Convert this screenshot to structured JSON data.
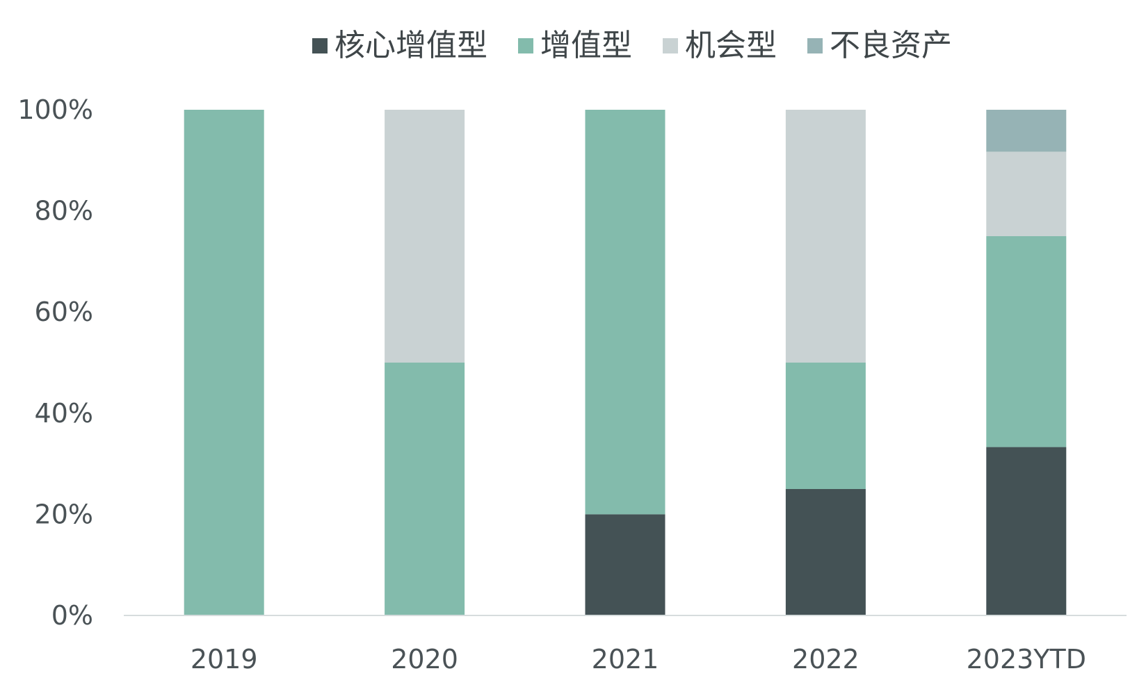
{
  "chart_data": {
    "type": "bar",
    "stacked": true,
    "title": "",
    "xlabel": "",
    "ylabel": "",
    "categories": [
      "2019",
      "2020",
      "2021",
      "2022",
      "2023YTD"
    ],
    "ylim": [
      0,
      100
    ],
    "yticks": [
      "0%",
      "20%",
      "40%",
      "60%",
      "80%",
      "100%"
    ],
    "ytick_values": [
      0,
      20,
      40,
      60,
      80,
      100
    ],
    "grid": false,
    "legend_position": "top",
    "series": [
      {
        "name": "核心增值型",
        "color": "#445255",
        "values": [
          0,
          0,
          20,
          25,
          33.3
        ]
      },
      {
        "name": "增值型",
        "color": "#83bbac",
        "values": [
          100,
          50,
          80,
          25,
          41.7
        ]
      },
      {
        "name": "机会型",
        "color": "#c9d2d3",
        "values": [
          0,
          50,
          0,
          50,
          16.7
        ]
      },
      {
        "name": "不良资产",
        "color": "#96b3b5",
        "values": [
          0,
          0,
          0,
          0,
          8.3
        ]
      }
    ]
  }
}
